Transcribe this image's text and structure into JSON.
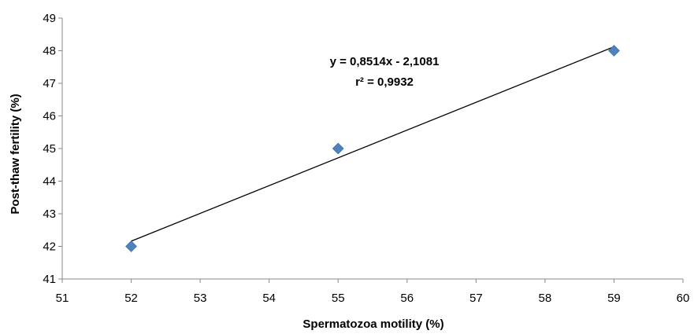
{
  "chart_data": {
    "type": "scatter",
    "title": "",
    "xlabel": "Spermatozoa motility (%)",
    "ylabel": "Post-thaw fertility (%)",
    "xlim": [
      51,
      60
    ],
    "ylim": [
      41,
      49
    ],
    "x_ticks": [
      "51",
      "52",
      "53",
      "54",
      "55",
      "56",
      "57",
      "58",
      "59",
      "60"
    ],
    "y_ticks": [
      "41",
      "42",
      "43",
      "44",
      "45",
      "46",
      "47",
      "48",
      "49"
    ],
    "grid": false,
    "legend": "none",
    "series": [
      {
        "marker": "diamond",
        "color": "#4F81BD",
        "points": [
          {
            "x": 52,
            "y": 42
          },
          {
            "x": 55,
            "y": 45
          },
          {
            "x": 59,
            "y": 48
          }
        ]
      }
    ],
    "trendline": {
      "type": "linear",
      "color": "#000000",
      "x_range": [
        52,
        59
      ],
      "y_range": [
        42.16,
        48.12
      ],
      "equation": "y = 0,8514x - 2,1081",
      "r_squared": "r² = 0,9932"
    }
  }
}
